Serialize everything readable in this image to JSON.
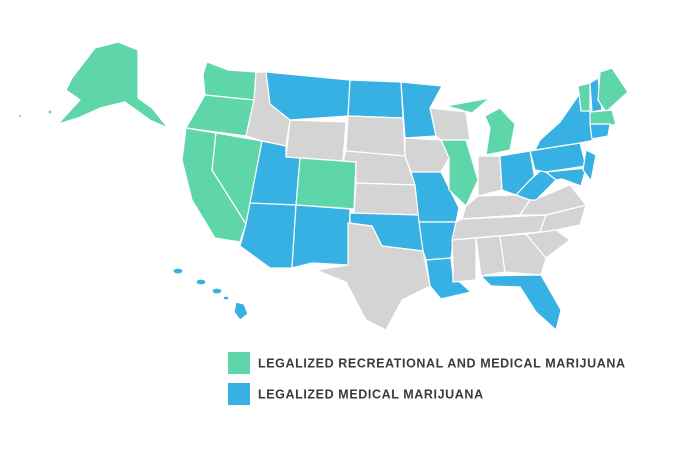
{
  "legend": {
    "items": [
      {
        "label": "LEGALIZED RECREATIONAL AND MEDICAL MARIJUANA",
        "color": "#5fd6a9"
      },
      {
        "label": "LEGALIZED MEDICAL MARIJUANA",
        "color": "#37b0e3"
      }
    ]
  }
}
